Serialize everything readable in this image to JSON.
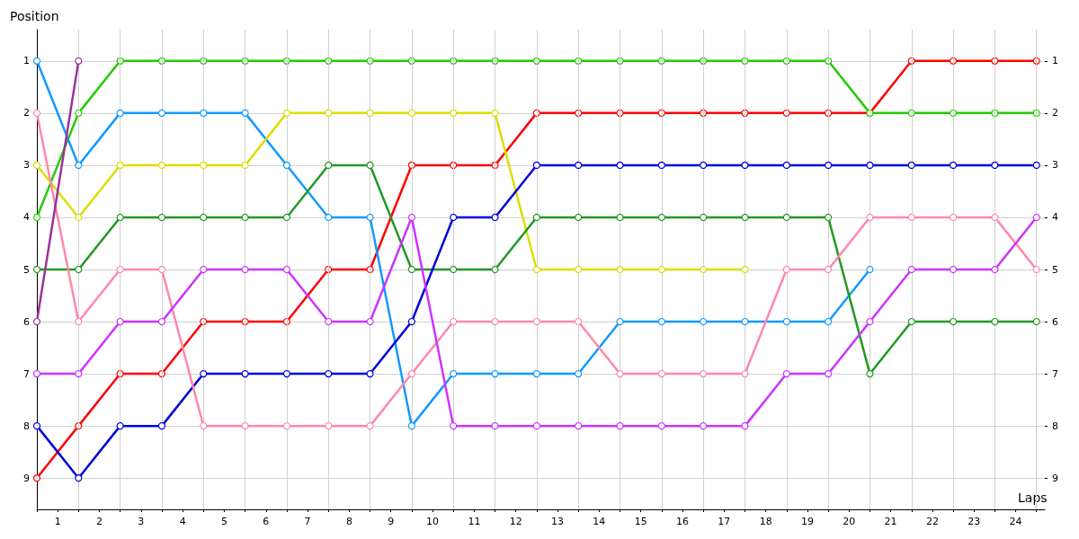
{
  "chart_data": {
    "type": "line",
    "xlabel": "Laps",
    "ylabel": "Position",
    "x": [
      0,
      1,
      2,
      3,
      4,
      5,
      6,
      7,
      8,
      9,
      10,
      11,
      12,
      13,
      14,
      15,
      16,
      17,
      18,
      19,
      20,
      21,
      22,
      23,
      24
    ],
    "series": [
      {
        "color": "#ff0000",
        "values": [
          9,
          8,
          7,
          7,
          6,
          6,
          6,
          5,
          5,
          3,
          3,
          3,
          2,
          2,
          2,
          2,
          2,
          2,
          2,
          2,
          2,
          1,
          1,
          1,
          1
        ]
      },
      {
        "color": "#22cc00",
        "values": [
          4,
          2,
          1,
          1,
          1,
          1,
          1,
          1,
          1,
          1,
          1,
          1,
          1,
          1,
          1,
          1,
          1,
          1,
          1,
          1,
          2,
          2,
          2,
          2,
          2
        ]
      },
      {
        "color": "#1199ff",
        "values": [
          1,
          3,
          2,
          2,
          2,
          2,
          3,
          4,
          4,
          8,
          7,
          7,
          7,
          7,
          6,
          6,
          6,
          6,
          6,
          6,
          5,
          null,
          null,
          null,
          null
        ]
      },
      {
        "color": "#dddd00",
        "values": [
          3,
          4,
          3,
          3,
          3,
          3,
          2,
          2,
          2,
          2,
          2,
          2,
          5,
          5,
          5,
          5,
          5,
          5,
          null,
          null,
          null,
          null,
          null,
          null,
          null
        ]
      },
      {
        "color": "#229922",
        "values": [
          5,
          5,
          4,
          4,
          4,
          4,
          4,
          3,
          3,
          5,
          5,
          5,
          4,
          4,
          4,
          4,
          4,
          4,
          4,
          4,
          7,
          6,
          6,
          6,
          6
        ]
      },
      {
        "color": "#0000dd",
        "values": [
          8,
          9,
          8,
          8,
          7,
          7,
          7,
          7,
          7,
          6,
          4,
          4,
          3,
          3,
          3,
          3,
          3,
          3,
          3,
          3,
          3,
          3,
          3,
          3,
          3
        ]
      },
      {
        "color": "#ff88aa",
        "values": [
          2,
          6,
          5,
          5,
          8,
          8,
          8,
          8,
          8,
          7,
          6,
          6,
          6,
          6,
          7,
          7,
          7,
          7,
          5,
          5,
          4,
          4,
          4,
          4,
          5
        ]
      },
      {
        "color": "#cc33ff",
        "values": [
          7,
          7,
          6,
          6,
          5,
          5,
          5,
          6,
          6,
          4,
          8,
          8,
          8,
          8,
          8,
          8,
          8,
          8,
          7,
          7,
          6,
          5,
          5,
          5,
          4
        ]
      },
      {
        "color": "#993399",
        "values": [
          6,
          1,
          null,
          null,
          null,
          null,
          null,
          null,
          null,
          null,
          null,
          null,
          null,
          null,
          null,
          null,
          null,
          null,
          null,
          null,
          null,
          null,
          null,
          null,
          null
        ]
      }
    ],
    "xlim": [
      0,
      24.2
    ],
    "xticks": [
      {
        "value": 0,
        "label": null
      },
      {
        "value": 0.5,
        "label": "1"
      },
      {
        "value": 1,
        "label": null
      },
      {
        "value": 1.5,
        "label": "2"
      },
      {
        "value": 2,
        "label": null
      },
      {
        "value": 2.5,
        "label": "3"
      },
      {
        "value": 3,
        "label": null
      },
      {
        "value": 3.5,
        "label": "4"
      },
      {
        "value": 4,
        "label": null
      },
      {
        "value": 4.5,
        "label": "5"
      },
      {
        "value": 5,
        "label": null
      },
      {
        "value": 5.5,
        "label": "6"
      },
      {
        "value": 6,
        "label": null
      },
      {
        "value": 6.5,
        "label": "7"
      },
      {
        "value": 7,
        "label": null
      },
      {
        "value": 7.5,
        "label": "8"
      },
      {
        "value": 8,
        "label": null
      },
      {
        "value": 8.5,
        "label": "9"
      },
      {
        "value": 9,
        "label": null
      },
      {
        "value": 9.5,
        "label": "10"
      },
      {
        "value": 10,
        "label": null
      },
      {
        "value": 10.5,
        "label": "11"
      },
      {
        "value": 11,
        "label": null
      },
      {
        "value": 11.5,
        "label": "12"
      },
      {
        "value": 12,
        "label": null
      },
      {
        "value": 12.5,
        "label": "13"
      },
      {
        "value": 13,
        "label": null
      },
      {
        "value": 13.5,
        "label": "14"
      },
      {
        "value": 14,
        "label": null
      },
      {
        "value": 14.5,
        "label": "15"
      },
      {
        "value": 15,
        "label": null
      },
      {
        "value": 15.5,
        "label": "16"
      },
      {
        "value": 16,
        "label": null
      },
      {
        "value": 16.5,
        "label": "17"
      },
      {
        "value": 17,
        "label": null
      },
      {
        "value": 17.5,
        "label": "18"
      },
      {
        "value": 18,
        "label": null
      },
      {
        "value": 18.5,
        "label": "19"
      },
      {
        "value": 19,
        "label": null
      },
      {
        "value": 19.5,
        "label": "20"
      },
      {
        "value": 20,
        "label": null
      },
      {
        "value": 20.5,
        "label": "21"
      },
      {
        "value": 21,
        "label": null
      },
      {
        "value": 21.5,
        "label": "22"
      },
      {
        "value": 22,
        "label": null
      },
      {
        "value": 22.5,
        "label": "23"
      },
      {
        "value": 23,
        "label": null
      },
      {
        "value": 23.5,
        "label": "24"
      },
      {
        "value": 24,
        "label": null
      }
    ],
    "ylim": [
      9.6,
      0.4
    ],
    "yticks": [
      1,
      2,
      3,
      4,
      5,
      6,
      7,
      8,
      9
    ],
    "y2lim": [
      9.6,
      0.4
    ],
    "y2ticks": [
      1,
      2,
      3,
      4,
      5,
      6,
      7,
      8,
      9
    ],
    "grid": true,
    "marker": "circle",
    "line_style": "solid"
  }
}
